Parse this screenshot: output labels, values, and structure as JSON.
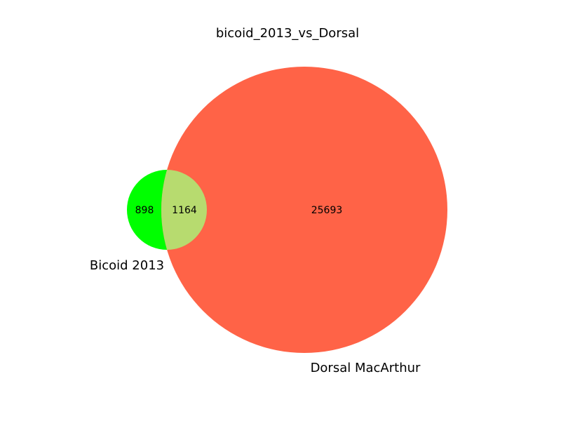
{
  "title": "bicoid_2013_vs_Dorsal",
  "sets": [
    {
      "name": "Bicoid 2013",
      "color": "#00ff00"
    },
    {
      "name": "Dorsal MacArthur",
      "color": "#ff6347"
    }
  ],
  "overlap_color": "#b7db6f",
  "counts": {
    "bicoid_only": "898",
    "both": "1164",
    "dorsal_only": "25693"
  }
}
